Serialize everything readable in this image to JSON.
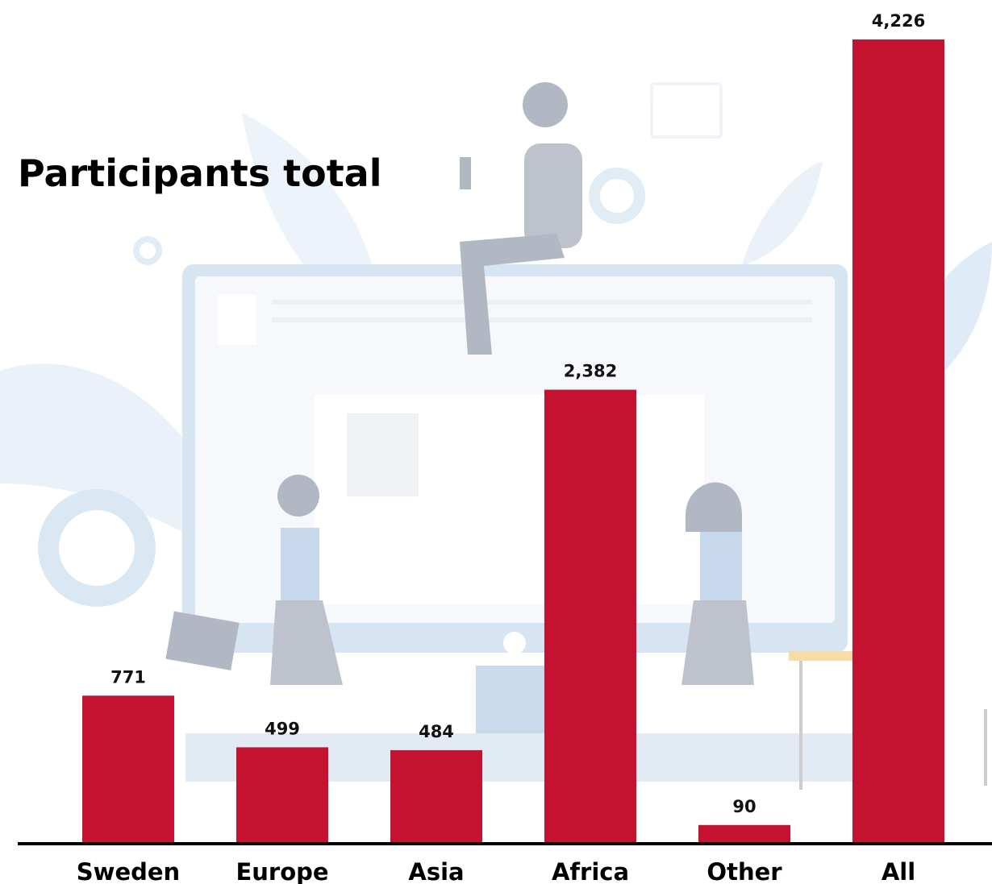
{
  "chart_data": {
    "type": "bar",
    "title": "Participants total",
    "categories": [
      "Sweden",
      "Europe",
      "Asia",
      "Africa",
      "Other",
      "All"
    ],
    "values": [
      771,
      499,
      484,
      2382,
      90,
      4226
    ],
    "value_labels": [
      "771",
      "499",
      "484",
      "2,382",
      "90",
      "4,226"
    ],
    "color": "#c41230"
  }
}
